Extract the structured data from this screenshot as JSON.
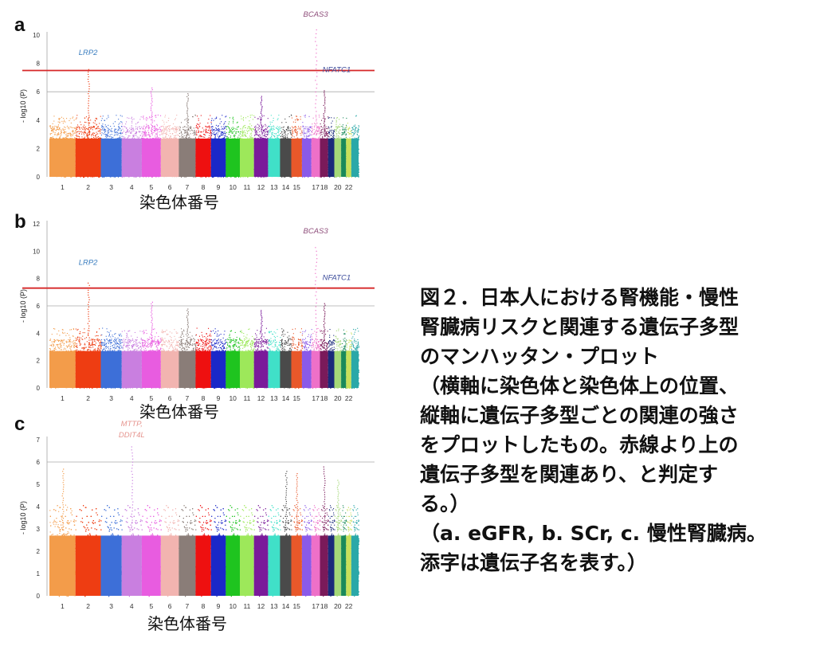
{
  "chart_data": [
    {
      "type": "scatter",
      "panel": "a",
      "xlabel": "染色体番号",
      "ylabel": "- log10 (P)",
      "ylim": [
        0,
        10
      ],
      "yticks": [
        0,
        2,
        4,
        6,
        8,
        10
      ],
      "categories": [
        "1",
        "2",
        "3",
        "4",
        "5",
        "6",
        "7",
        "8",
        "9",
        "10",
        "11",
        "12",
        "13",
        "14",
        "15",
        "17",
        "18",
        "20",
        "22"
      ],
      "threshold_lines": [
        {
          "value": 7.5,
          "color": "#d62728"
        },
        {
          "value": 6,
          "color": "#aaaaaa"
        }
      ],
      "peaks": [
        {
          "chromosome": 2,
          "value": 7.6
        },
        {
          "chromosome": 5,
          "value": 6.3
        },
        {
          "chromosome": 7,
          "value": 5.9
        },
        {
          "chromosome": 12,
          "value": 5.7
        },
        {
          "chromosome": 17,
          "value": 10.4
        },
        {
          "chromosome": 18,
          "value": 6.1
        }
      ],
      "annotations": [
        {
          "text": "LRP2",
          "chromosome": 2,
          "value": 8.6,
          "color": "#3a7dbf"
        },
        {
          "text": "BCAS3",
          "chromosome": 17,
          "value": 11.3,
          "color": "#8e4d7a"
        },
        {
          "text": "NFATC1",
          "chromosome": 18,
          "value": 7.4,
          "color": "#3b4b9b"
        }
      ]
    },
    {
      "type": "scatter",
      "panel": "b",
      "xlabel": "染色体番号",
      "ylabel": "- log10 (P)",
      "ylim": [
        0,
        12
      ],
      "yticks": [
        0,
        2,
        4,
        6,
        8,
        10,
        12
      ],
      "categories": [
        "1",
        "2",
        "3",
        "4",
        "5",
        "6",
        "7",
        "8",
        "9",
        "10",
        "11",
        "12",
        "13",
        "14",
        "15",
        "17",
        "18",
        "20",
        "22"
      ],
      "threshold_lines": [
        {
          "value": 7.3,
          "color": "#d62728"
        },
        {
          "value": 6,
          "color": "#aaaaaa"
        }
      ],
      "peaks": [
        {
          "chromosome": 2,
          "value": 7.7
        },
        {
          "chromosome": 5,
          "value": 6.3
        },
        {
          "chromosome": 7,
          "value": 5.8
        },
        {
          "chromosome": 12,
          "value": 5.7
        },
        {
          "chromosome": 17,
          "value": 10.3
        },
        {
          "chromosome": 18,
          "value": 6.2
        }
      ],
      "annotations": [
        {
          "text": "LRP2",
          "chromosome": 2,
          "value": 9.0,
          "color": "#3a7dbf"
        },
        {
          "text": "BCAS3",
          "chromosome": 17,
          "value": 11.3,
          "color": "#8e4d7a"
        },
        {
          "text": "NFATC1",
          "chromosome": 18,
          "value": 7.9,
          "color": "#3b4b9b"
        }
      ]
    },
    {
      "type": "scatter",
      "panel": "c",
      "xlabel": "染色体番号",
      "ylabel": "- log10 (P)",
      "ylim": [
        0,
        7
      ],
      "yticks": [
        0,
        1,
        2,
        3,
        4,
        5,
        6,
        7
      ],
      "categories": [
        "1",
        "2",
        "3",
        "4",
        "5",
        "6",
        "7",
        "8",
        "9",
        "10",
        "11",
        "12",
        "13",
        "14",
        "15",
        "17",
        "18",
        "20",
        "22"
      ],
      "threshold_lines": [
        {
          "value": 6,
          "color": "#aaaaaa"
        }
      ],
      "peaks": [
        {
          "chromosome": 1,
          "value": 5.7
        },
        {
          "chromosome": 4,
          "value": 6.7
        },
        {
          "chromosome": 14,
          "value": 5.6
        },
        {
          "chromosome": 15,
          "value": 5.5
        },
        {
          "chromosome": 18,
          "value": 5.8
        },
        {
          "chromosome": 20,
          "value": 5.2
        }
      ],
      "annotations": [
        {
          "text": "MTTP,",
          "chromosome": 4,
          "value": 7.6,
          "color": "#e6958f"
        },
        {
          "text": "DDIT4L",
          "chromosome": 4,
          "value": 7.1,
          "color": "#e6958f"
        }
      ]
    }
  ],
  "chromosome_colors": [
    "#f39c4a",
    "#ee3d12",
    "#3d6fd8",
    "#c97fe0",
    "#e85ce0",
    "#f2b4b0",
    "#8a7d78",
    "#ee1010",
    "#1a28c8",
    "#1fc41f",
    "#9de85a",
    "#7a1a9a",
    "#40e0c8",
    "#4a4a4a",
    "#e8582a",
    "#8a5ae8",
    "#ee70c8",
    "#7a1a5a",
    "#1a2a7a",
    "#a4d878",
    "#1a8a5a",
    "#c8e05a",
    "#2aa8a8"
  ],
  "caption": [
    "図２．日本人における腎機能・慢性",
    "腎臓病リスクと関連する遺伝子多型",
    "のマンハッタン・プロット",
    "（横軸に染色体と染色体上の位置、",
    "縦軸に遺伝子多型ごとの関連の強さ",
    "をプロットしたもの。赤線より上の",
    "遺伝子多型を関連あり、と判定す",
    "る。）",
    "（a. eGFR, b. SCr, c. 慢性腎臓病。",
    "添字は遺伝子名を表す。）"
  ]
}
